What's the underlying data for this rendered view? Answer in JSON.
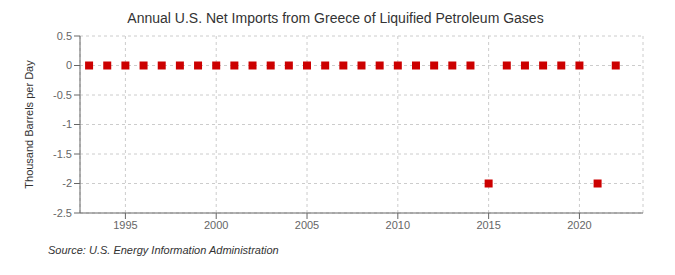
{
  "chart_data": {
    "type": "scatter",
    "title": "Annual U.S. Net Imports from Greece of Liquified Petroleum Gases",
    "ylabel": "Thousand Barrels per Day",
    "source": "Source: U.S. Energy Information Administration",
    "x": [
      1993,
      1994,
      1995,
      1996,
      1997,
      1998,
      1999,
      2000,
      2001,
      2002,
      2003,
      2004,
      2005,
      2006,
      2007,
      2008,
      2009,
      2010,
      2011,
      2012,
      2013,
      2014,
      2015,
      2016,
      2017,
      2018,
      2019,
      2020,
      2021,
      2022
    ],
    "values": [
      0,
      0,
      0,
      0,
      0,
      0,
      0,
      0,
      0,
      0,
      0,
      0,
      0,
      0,
      0,
      0,
      0,
      0,
      0,
      0,
      0,
      0,
      -2.0,
      0,
      0,
      0,
      0,
      0,
      -2.0,
      0
    ],
    "color": "#cc0000",
    "marker": "square",
    "xlim": [
      1992.5,
      2023.5
    ],
    "xticks": [
      1995,
      2000,
      2005,
      2010,
      2015,
      2020
    ],
    "ylim": [
      -2.5,
      0.5
    ],
    "yticks": [
      0.5,
      0,
      -0.5,
      -1,
      -1.5,
      -2,
      -2.5
    ],
    "grid": true
  }
}
